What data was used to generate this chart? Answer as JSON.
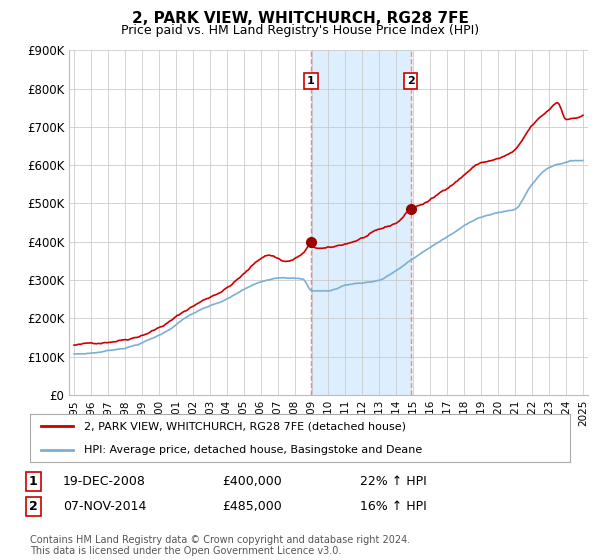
{
  "title": "2, PARK VIEW, WHITCHURCH, RG28 7FE",
  "subtitle": "Price paid vs. HM Land Registry's House Price Index (HPI)",
  "ylabel_ticks": [
    "£0",
    "£100K",
    "£200K",
    "£300K",
    "£400K",
    "£500K",
    "£600K",
    "£700K",
    "£800K",
    "£900K"
  ],
  "ylim": [
    0,
    900000
  ],
  "xlim_start": 1994.7,
  "xlim_end": 2025.3,
  "sale1_date": "19-DEC-2008",
  "sale1_price": 400000,
  "sale1_hpi_pct": "22% ↑ HPI",
  "sale1_x": 2008.96,
  "sale2_date": "07-NOV-2014",
  "sale2_price": 485000,
  "sale2_hpi_pct": "16% ↑ HPI",
  "sale2_x": 2014.84,
  "legend_line1": "2, PARK VIEW, WHITCHURCH, RG28 7FE (detached house)",
  "legend_line2": "HPI: Average price, detached house, Basingstoke and Deane",
  "footnote": "Contains HM Land Registry data © Crown copyright and database right 2024.\nThis data is licensed under the Open Government Licence v3.0.",
  "property_line_color": "#cc0000",
  "hpi_line_color": "#7bafd4",
  "shade_color": "#ddeeff",
  "marker_color": "#990000",
  "vline_color": "#ee8888",
  "label_box_color": "#cc0000",
  "background_color": "#ffffff",
  "grid_color": "#cccccc"
}
